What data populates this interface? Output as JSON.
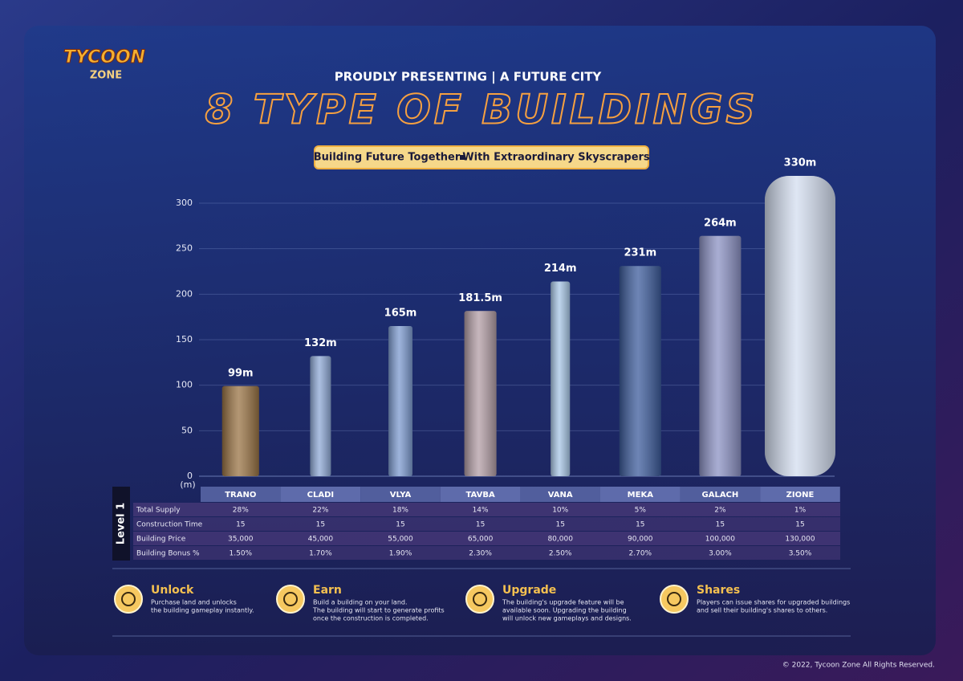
{
  "header": {
    "logo": [
      "TYCOON",
      "ZONE"
    ],
    "kicker": "PROUDLY PRESENTING  |  A FUTURE CITY",
    "title": "8 TYPE OF BUILDINGS",
    "banner": [
      "Building Future Together",
      "With Extraordinary Skyscrapers"
    ]
  },
  "chart_data": {
    "type": "bar",
    "categories": [
      "TRANO",
      "CLADI",
      "VLYA",
      "TAVBA",
      "VANA",
      "MEKA",
      "GALACH",
      "ZIONE"
    ],
    "values": [
      99,
      132,
      165,
      181.5,
      214,
      231,
      264,
      330
    ],
    "value_labels": [
      "99m",
      "132m",
      "165m",
      "181.5m",
      "214m",
      "231m",
      "264m",
      "330m"
    ],
    "colors": [
      "#9a7445",
      "#8fa9d6",
      "#7d9bd0",
      "#b39ea6",
      "#a8c6e6",
      "#3d5c9c",
      "#8c92c4",
      "#d4def0"
    ],
    "y_unit": "(m)",
    "ylim": [
      0,
      340
    ],
    "yticks": [
      0,
      50,
      100,
      150,
      200,
      250,
      300
    ],
    "grid": true
  },
  "table": {
    "level": "Level 1",
    "rows": [
      {
        "label": "Total Supply",
        "cells": [
          "28%",
          "22%",
          "18%",
          "14%",
          "10%",
          "5%",
          "2%",
          "1%"
        ]
      },
      {
        "label": "Construction Time",
        "cells": [
          "15",
          "15",
          "15",
          "15",
          "15",
          "15",
          "15",
          "15"
        ]
      },
      {
        "label": "Building Price",
        "cells": [
          "35,000",
          "45,000",
          "55,000",
          "65,000",
          "80,000",
          "90,000",
          "100,000",
          "130,000"
        ]
      },
      {
        "label": "Building Bonus %",
        "cells": [
          "1.50%",
          "1.70%",
          "1.90%",
          "2.30%",
          "2.50%",
          "2.70%",
          "3.00%",
          "3.50%"
        ]
      }
    ]
  },
  "features": [
    {
      "title": "Unlock",
      "lines": [
        "Purchase land and unlocks",
        "the building gameplay instantly."
      ]
    },
    {
      "title": "Earn",
      "lines": [
        "Build a building on your land.",
        "The building will start to generate profits",
        "once the construction is completed."
      ]
    },
    {
      "title": "Upgrade",
      "lines": [
        "The building's upgrade feature will be",
        "available soon.  Upgrading the building",
        "will unlock new gameplays and designs."
      ]
    },
    {
      "title": "Shares",
      "lines": [
        "Players can issue shares for upgraded buildings",
        "and sell their building's shares to others."
      ]
    }
  ],
  "footer": "© 2022, Tycoon Zone All Rights Reserved."
}
